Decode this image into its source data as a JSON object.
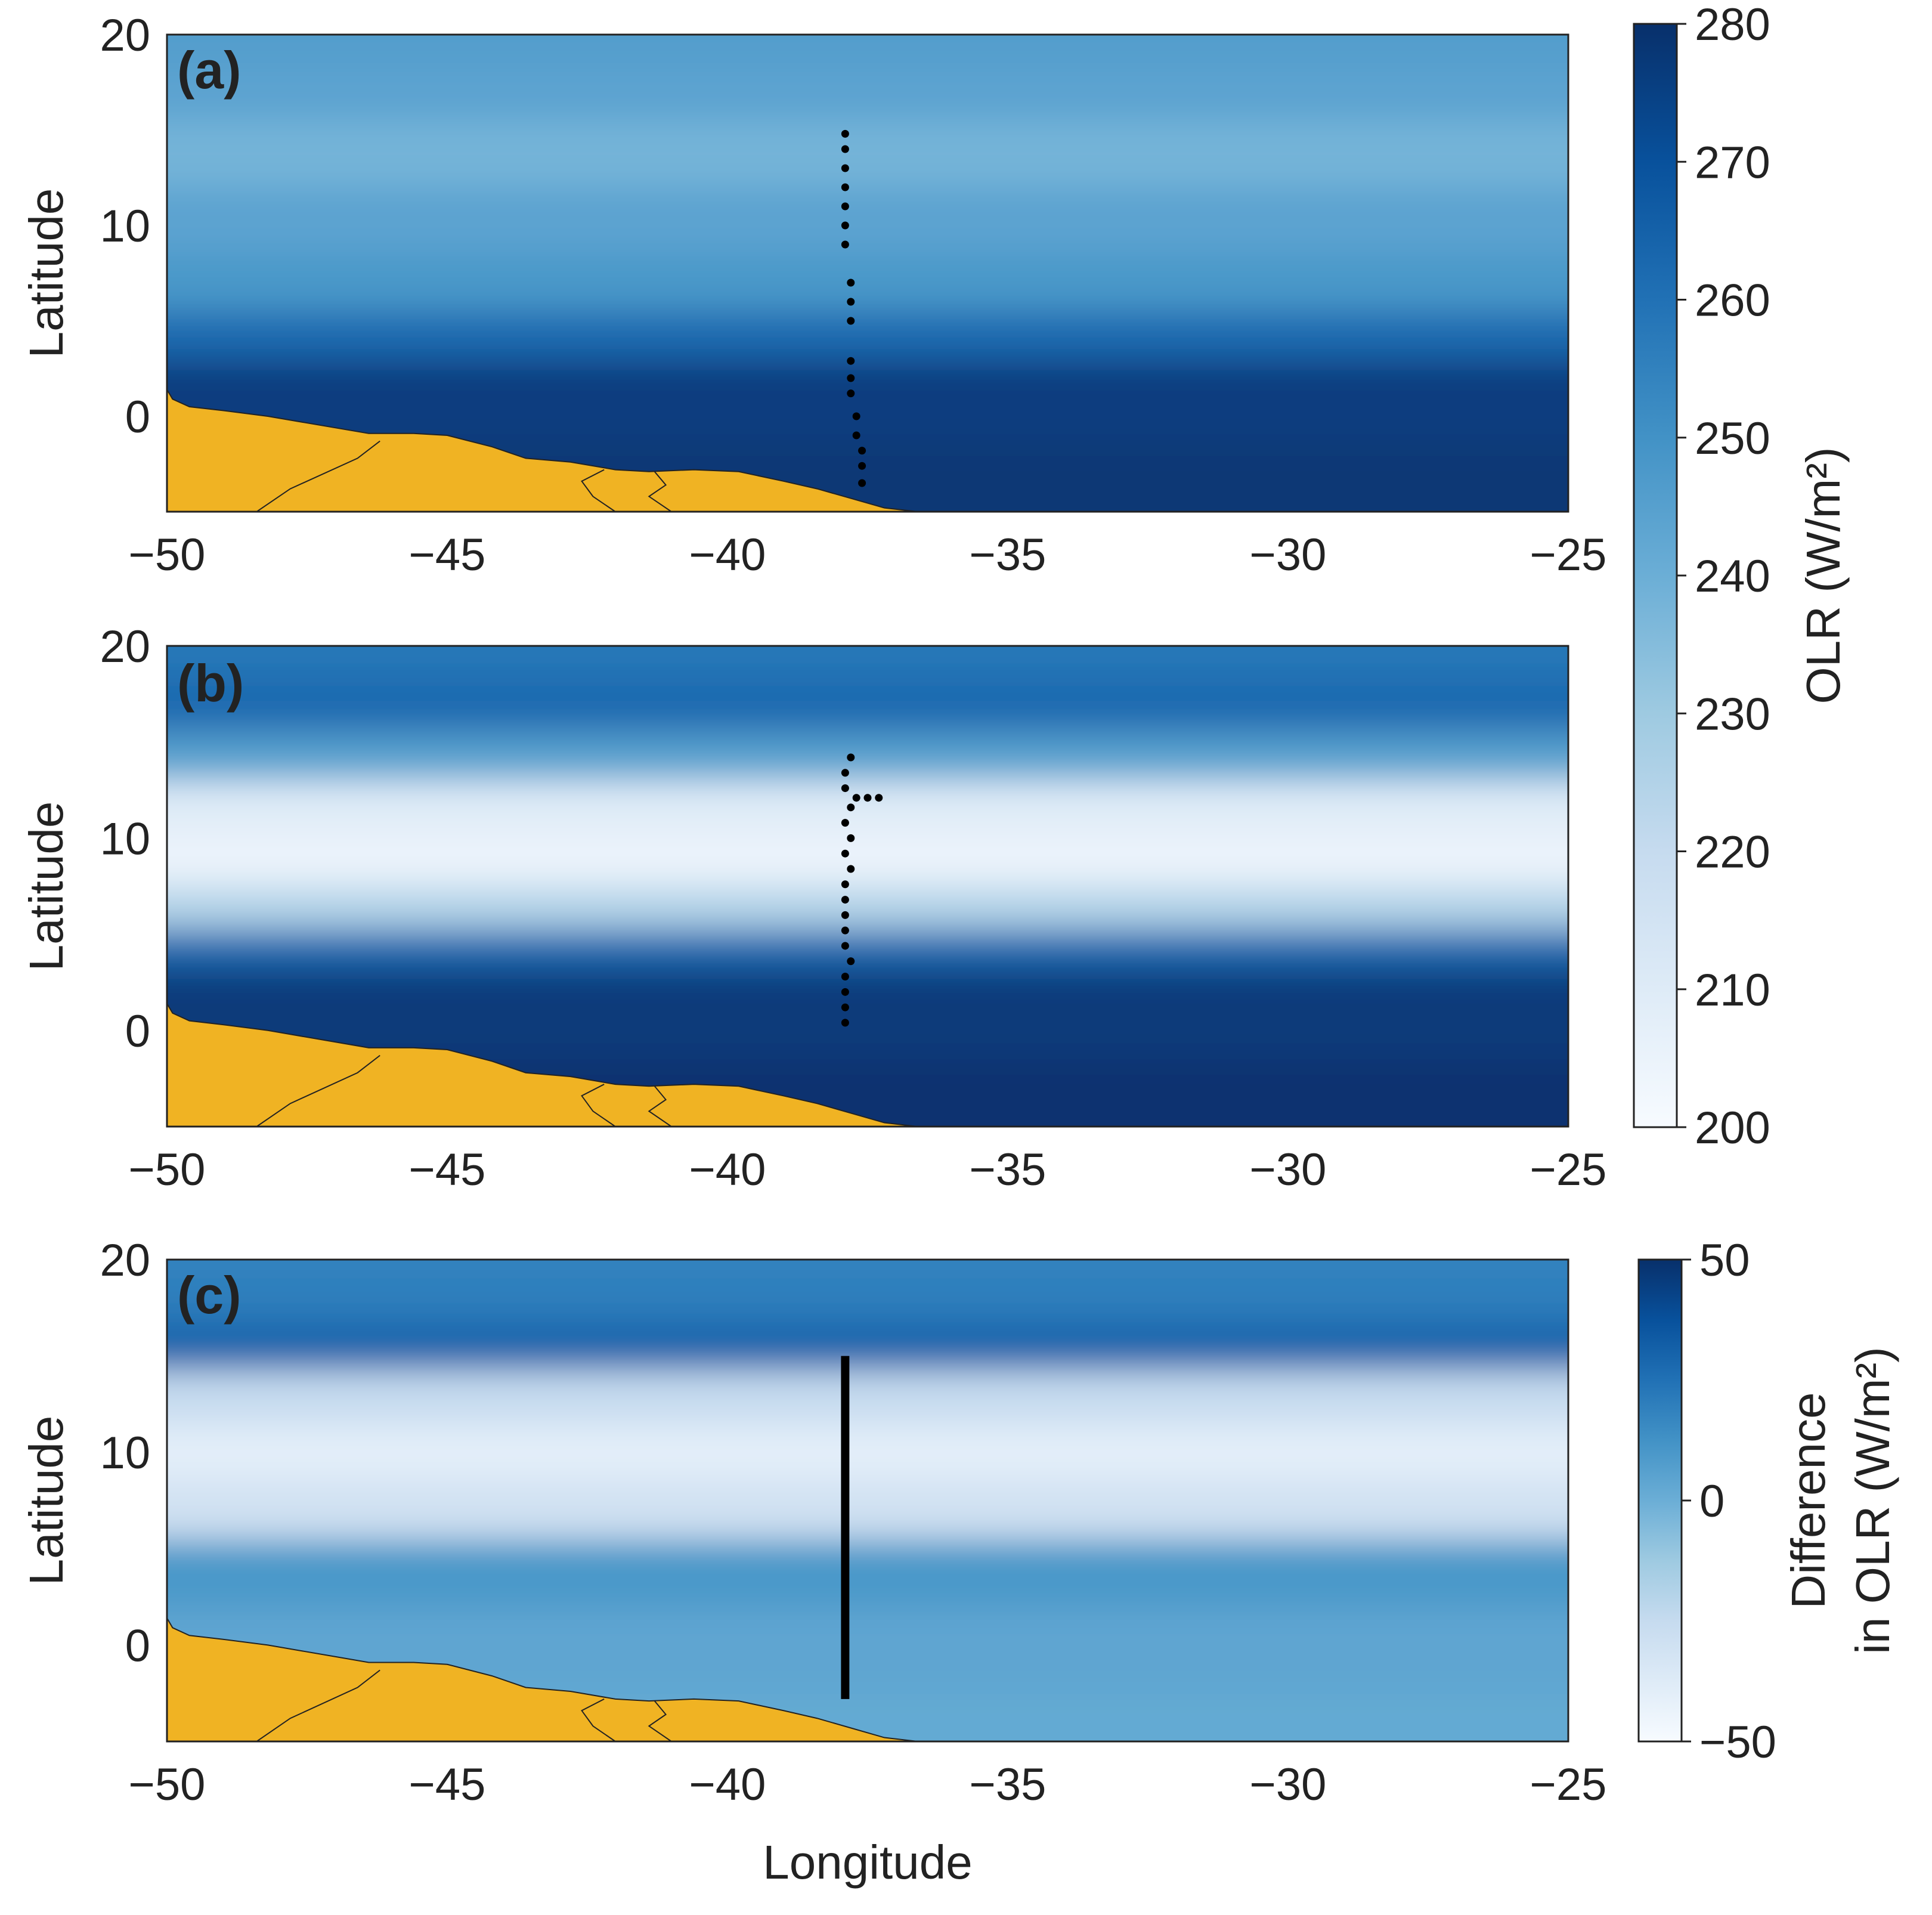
{
  "chart_data": [
    {
      "type": "heatmap",
      "panel_label": "(a)",
      "xlabel": "",
      "ylabel": "Latitude",
      "xlim": [
        -50,
        -25
      ],
      "ylim": [
        -5,
        20
      ],
      "xticks": [
        "−50",
        "−45",
        "−40",
        "−35",
        "−30",
        "−25"
      ],
      "yticks": [
        "20",
        "10",
        "0"
      ],
      "bands": [
        {
          "lat": -5,
          "value": 278
        },
        {
          "lat": 2,
          "value": 276
        },
        {
          "lat": 4,
          "value": 262
        },
        {
          "lat": 7,
          "value": 248
        },
        {
          "lat": 10,
          "value": 244
        },
        {
          "lat": 14,
          "value": 238
        },
        {
          "lat": 17,
          "value": 244
        },
        {
          "lat": 20,
          "value": 246
        }
      ],
      "track": {
        "style": "dots",
        "points": [
          {
            "lon": -37.6,
            "lat": -3.5
          },
          {
            "lon": -37.6,
            "lat": -2.6
          },
          {
            "lon": -37.6,
            "lat": -1.8
          },
          {
            "lon": -37.7,
            "lat": -1.0
          },
          {
            "lon": -37.7,
            "lat": 0.0
          },
          {
            "lon": -37.8,
            "lat": 1.2
          },
          {
            "lon": -37.8,
            "lat": 2.0
          },
          {
            "lon": -37.8,
            "lat": 2.9
          },
          {
            "lon": -37.8,
            "lat": 5.0
          },
          {
            "lon": -37.8,
            "lat": 6.0
          },
          {
            "lon": -37.8,
            "lat": 7.0
          },
          {
            "lon": -37.9,
            "lat": 9.0
          },
          {
            "lon": -37.9,
            "lat": 10.0
          },
          {
            "lon": -37.9,
            "lat": 11.0
          },
          {
            "lon": -37.9,
            "lat": 12.0
          },
          {
            "lon": -37.9,
            "lat": 13.0
          },
          {
            "lon": -37.9,
            "lat": 14.0
          },
          {
            "lon": -37.9,
            "lat": 14.8
          }
        ]
      }
    },
    {
      "type": "heatmap",
      "panel_label": "(b)",
      "xlabel": "",
      "ylabel": "Latitude",
      "xlim": [
        -50,
        -25
      ],
      "ylim": [
        -5,
        20
      ],
      "xticks": [
        "−50",
        "−45",
        "−40",
        "−35",
        "−30",
        "−25"
      ],
      "yticks": [
        "20",
        "10",
        "0"
      ],
      "bands": [
        {
          "lat": -5,
          "value": 279
        },
        {
          "lat": 2,
          "value": 277
        },
        {
          "lat": 4.5,
          "value": 262
        },
        {
          "lat": 6,
          "value": 225
        },
        {
          "lat": 9,
          "value": 205
        },
        {
          "lat": 12,
          "value": 210
        },
        {
          "lat": 14,
          "value": 245
        },
        {
          "lat": 17,
          "value": 262
        },
        {
          "lat": 20,
          "value": 258
        }
      ],
      "track": {
        "style": "dots",
        "points": [
          {
            "lon": -37.9,
            "lat": 0.4
          },
          {
            "lon": -37.9,
            "lat": 1.2
          },
          {
            "lon": -37.9,
            "lat": 2.0
          },
          {
            "lon": -37.9,
            "lat": 2.8
          },
          {
            "lon": -37.8,
            "lat": 3.6
          },
          {
            "lon": -37.9,
            "lat": 4.4
          },
          {
            "lon": -37.9,
            "lat": 5.2
          },
          {
            "lon": -37.9,
            "lat": 6.0
          },
          {
            "lon": -37.9,
            "lat": 6.8
          },
          {
            "lon": -37.9,
            "lat": 7.6
          },
          {
            "lon": -37.8,
            "lat": 8.4
          },
          {
            "lon": -37.9,
            "lat": 9.2
          },
          {
            "lon": -37.8,
            "lat": 10.0
          },
          {
            "lon": -37.9,
            "lat": 10.8
          },
          {
            "lon": -37.8,
            "lat": 11.6
          },
          {
            "lon": -37.7,
            "lat": 12.1
          },
          {
            "lon": -37.5,
            "lat": 12.1
          },
          {
            "lon": -37.3,
            "lat": 12.1
          },
          {
            "lon": -37.9,
            "lat": 12.6
          },
          {
            "lon": -37.9,
            "lat": 13.4
          },
          {
            "lon": -37.8,
            "lat": 14.2
          }
        ]
      }
    },
    {
      "type": "heatmap",
      "panel_label": "(c)",
      "xlabel": "Longitude",
      "ylabel": "Latitude",
      "xlim": [
        -50,
        -25
      ],
      "ylim": [
        -5,
        20
      ],
      "xticks": [
        "−50",
        "−45",
        "−40",
        "−35",
        "−30",
        "−25"
      ],
      "yticks": [
        "20",
        "10",
        "0"
      ],
      "bands": [
        {
          "lat": -5,
          "value": 2
        },
        {
          "lat": 0,
          "value": 4
        },
        {
          "lat": 4,
          "value": 10
        },
        {
          "lat": 7,
          "value": -30
        },
        {
          "lat": 10,
          "value": -40
        },
        {
          "lat": 13,
          "value": -25
        },
        {
          "lat": 15.5,
          "value": 30
        },
        {
          "lat": 18,
          "value": 20
        },
        {
          "lat": 20,
          "value": 18
        }
      ],
      "track": {
        "style": "line",
        "points": [
          {
            "lon": -37.9,
            "lat": -2.8
          },
          {
            "lon": -37.9,
            "lat": 15.0
          }
        ]
      }
    }
  ],
  "colorbars": [
    {
      "label": "OLR (W/m²)",
      "range": [
        200,
        280
      ],
      "ticks": [
        "280",
        "270",
        "260",
        "250",
        "240",
        "230",
        "220",
        "210",
        "200"
      ]
    },
    {
      "label_line1": "Difference",
      "label_line2": "in OLR (W/m²)",
      "range": [
        -50,
        50
      ],
      "ticks": [
        "50",
        "0",
        "−50"
      ]
    }
  ],
  "colors": {
    "colormap_low": "#f7fbff",
    "colormap_high": "#08306b",
    "land": "#f0b323",
    "track": "#000000"
  }
}
